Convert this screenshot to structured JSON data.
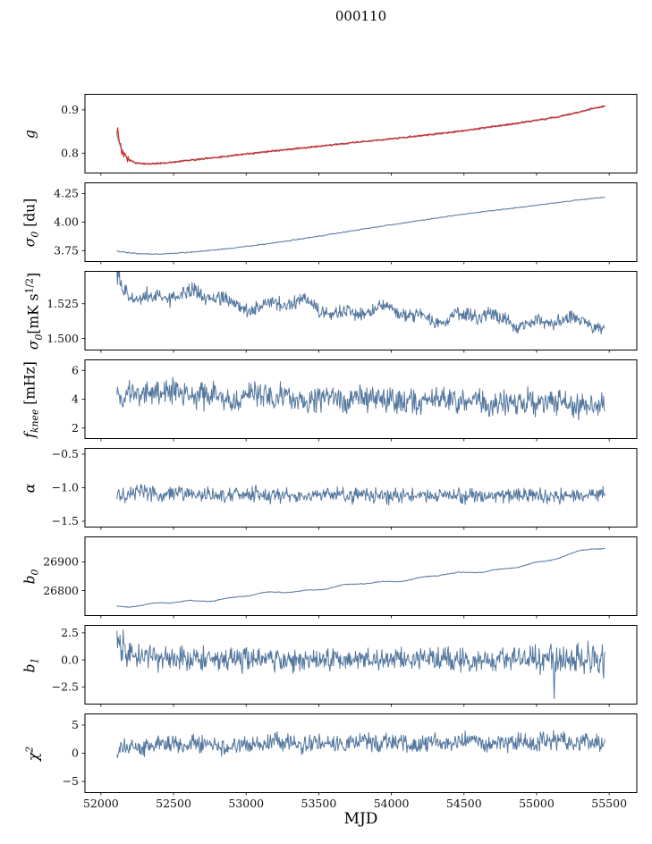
{
  "figure": {
    "title": "000110",
    "xlabel": "MJD"
  },
  "chart_data": {
    "type": "line",
    "title": "000110",
    "xlabel": "MJD",
    "grid": false,
    "legend": "none",
    "xlim": [
      51890,
      55690
    ],
    "xticks": [
      [
        52000,
        "52000"
      ],
      [
        52500,
        "52500"
      ],
      [
        53000,
        "53000"
      ],
      [
        53500,
        "53500"
      ],
      [
        54000,
        "54000"
      ],
      [
        54500,
        "54500"
      ],
      [
        55000,
        "55000"
      ],
      [
        55500,
        "55500"
      ]
    ],
    "colors": {
      "line_blue": "#53779e",
      "line_red": "#d9241f",
      "line_underlay_blue": "#7d93ab",
      "axis": "#000000"
    },
    "panels": [
      {
        "name": "g",
        "ylabel": {
          "base": "g"
        },
        "ylim": [
          0.755,
          0.935
        ],
        "yticks": [
          [
            0.8,
            "0.8"
          ],
          [
            0.9,
            "0.9"
          ]
        ],
        "series": [
          {
            "color": "#7d93ab",
            "width": 1.4,
            "n": 500,
            "noise": 0.0012,
            "trend": [
              [
                52110,
                0.843
              ],
              [
                52140,
                0.808
              ],
              [
                52180,
                0.788
              ],
              [
                52240,
                0.777
              ],
              [
                52330,
                0.7748
              ],
              [
                52450,
                0.7775
              ],
              [
                52600,
                0.7832
              ],
              [
                52800,
                0.7905
              ],
              [
                53000,
                0.798
              ],
              [
                53250,
                0.807
              ],
              [
                53500,
                0.816
              ],
              [
                53750,
                0.8245
              ],
              [
                54000,
                0.833
              ],
              [
                54250,
                0.842
              ],
              [
                54500,
                0.852
              ],
              [
                54750,
                0.8635
              ],
              [
                55000,
                0.876
              ],
              [
                55150,
                0.884
              ],
              [
                55300,
                0.8955
              ],
              [
                55400,
                0.904
              ],
              [
                55470,
                0.909
              ]
            ]
          },
          {
            "color": "#d9241f",
            "width": 1.1,
            "n": 650,
            "noise": [
              [
                52110,
                0.014
              ],
              [
                52150,
                0.009
              ],
              [
                52230,
                0.0016
              ],
              [
                55470,
                0.0016
              ]
            ],
            "trend": [
              [
                52110,
                0.843
              ],
              [
                52140,
                0.808
              ],
              [
                52180,
                0.788
              ],
              [
                52240,
                0.777
              ],
              [
                52330,
                0.7748
              ],
              [
                52450,
                0.7775
              ],
              [
                52600,
                0.7832
              ],
              [
                52800,
                0.7905
              ],
              [
                53000,
                0.798
              ],
              [
                53250,
                0.807
              ],
              [
                53500,
                0.816
              ],
              [
                53750,
                0.8245
              ],
              [
                54000,
                0.833
              ],
              [
                54250,
                0.842
              ],
              [
                54500,
                0.852
              ],
              [
                54750,
                0.8635
              ],
              [
                55000,
                0.876
              ],
              [
                55150,
                0.884
              ],
              [
                55300,
                0.8955
              ],
              [
                55400,
                0.904
              ],
              [
                55470,
                0.909
              ]
            ]
          }
        ]
      },
      {
        "name": "sigma0-du",
        "ylabel": {
          "base": "σ",
          "sub": "0",
          "rest": " [du]"
        },
        "ylim": [
          3.66,
          4.34
        ],
        "yticks": [
          [
            3.75,
            "3.75"
          ],
          [
            4.0,
            "4.00"
          ],
          [
            4.25,
            "4.25"
          ]
        ],
        "series": [
          {
            "color": "#53779e",
            "width": 1,
            "n": 600,
            "noise": [
              [
                52110,
                0.006
              ],
              [
                52250,
                0.003
              ],
              [
                55470,
                0.003
              ]
            ],
            "trend": [
              [
                52110,
                3.747
              ],
              [
                52250,
                3.725
              ],
              [
                52420,
                3.721
              ],
              [
                52650,
                3.741
              ],
              [
                52900,
                3.772
              ],
              [
                53150,
                3.812
              ],
              [
                53400,
                3.858
              ],
              [
                53650,
                3.908
              ],
              [
                53900,
                3.958
              ],
              [
                54150,
                4.006
              ],
              [
                54400,
                4.052
              ],
              [
                54650,
                4.094
              ],
              [
                54900,
                4.132
              ],
              [
                55150,
                4.172
              ],
              [
                55300,
                4.196
              ],
              [
                55470,
                4.22
              ]
            ]
          }
        ]
      },
      {
        "name": "sigma0-mK",
        "ylabel": {
          "base": "σ",
          "sub": "0",
          "mid": "[mK s",
          "sup": "1/2",
          "end": "]"
        },
        "ylim": [
          1.492,
          1.548
        ],
        "yticks": [
          [
            1.5,
            "1.500"
          ],
          [
            1.525,
            "1.525"
          ]
        ],
        "series": [
          {
            "color": "#53779e",
            "width": 1,
            "n": 800,
            "wander": 0.0032,
            "noise": [
              [
                52110,
                0.009
              ],
              [
                52200,
                0.0037
              ],
              [
                55470,
                0.0037
              ]
            ],
            "trend": [
              [
                52110,
                1.538
              ],
              [
                52200,
                1.531
              ],
              [
                52400,
                1.5335
              ],
              [
                52700,
                1.529
              ],
              [
                53000,
                1.5255
              ],
              [
                53300,
                1.5235
              ],
              [
                53600,
                1.521
              ],
              [
                53900,
                1.5185
              ],
              [
                54200,
                1.5165
              ],
              [
                54500,
                1.515
              ],
              [
                54800,
                1.5135
              ],
              [
                55100,
                1.512
              ],
              [
                55470,
                1.5095
              ]
            ]
          }
        ]
      },
      {
        "name": "f-knee",
        "ylabel": {
          "base": "f",
          "sub": "knee",
          "rest": " [mHz]"
        },
        "ylim": [
          1.3,
          6.7
        ],
        "yticks": [
          [
            2,
            "2"
          ],
          [
            4,
            "4"
          ],
          [
            6,
            "6"
          ]
        ],
        "series": [
          {
            "color": "#53779e",
            "width": 1,
            "n": 780,
            "noise": 0.66,
            "wander": 0.13,
            "trend": [
              [
                52110,
                4.45
              ],
              [
                52500,
                4.32
              ],
              [
                53000,
                4.18
              ],
              [
                53500,
                4.05
              ],
              [
                54000,
                3.92
              ],
              [
                54500,
                3.82
              ],
              [
                55000,
                3.72
              ],
              [
                55470,
                3.65
              ]
            ]
          }
        ]
      },
      {
        "name": "alpha",
        "ylabel": {
          "base": "α"
        },
        "ylim": [
          -1.58,
          -0.42
        ],
        "yticks": [
          [
            -0.5,
            "−0.5"
          ],
          [
            -1.0,
            "−1.0"
          ],
          [
            -1.5,
            "−1.5"
          ]
        ],
        "series": [
          {
            "color": "#53779e",
            "width": 1,
            "n": 780,
            "noise": 0.08,
            "wander": 0.012,
            "trend": [
              [
                52110,
                -1.085
              ],
              [
                52600,
                -1.105
              ],
              [
                53600,
                -1.115
              ],
              [
                55470,
                -1.115
              ]
            ]
          }
        ]
      },
      {
        "name": "b0",
        "ylabel": {
          "base": "b",
          "sub": "0"
        },
        "ylim": [
          26715,
          26985
        ],
        "yticks": [
          [
            26800,
            "26800"
          ],
          [
            26900,
            "26900"
          ]
        ],
        "series": [
          {
            "color": "#53779e",
            "width": 1,
            "n": 500,
            "noise": 1.2,
            "wander": 3.5,
            "trend": [
              [
                52110,
                26747
              ],
              [
                52300,
                26751
              ],
              [
                52500,
                26757
              ],
              [
                52700,
                26766
              ],
              [
                52900,
                26776
              ],
              [
                53100,
                26787
              ],
              [
                53300,
                26797
              ],
              [
                53500,
                26807
              ],
              [
                53700,
                26817
              ],
              [
                53900,
                26828
              ],
              [
                54100,
                26839
              ],
              [
                54300,
                26850
              ],
              [
                54500,
                26861
              ],
              [
                54700,
                26873
              ],
              [
                54900,
                26885
              ],
              [
                55050,
                26897
              ],
              [
                55200,
                26922
              ],
              [
                55300,
                26941
              ],
              [
                55380,
                26951
              ],
              [
                55470,
                26946
              ]
            ]
          }
        ]
      },
      {
        "name": "b1",
        "ylabel": {
          "base": "b",
          "sub": "1"
        },
        "ylim": [
          -4.05,
          3.15
        ],
        "yticks": [
          [
            -2.5,
            "−2.5"
          ],
          [
            0.0,
            "0.0"
          ],
          [
            2.5,
            "2.5"
          ]
        ],
        "series": [
          {
            "color": "#53779e",
            "width": 1,
            "n": 780,
            "noise": [
              [
                52110,
                1.4
              ],
              [
                52200,
                0.8
              ],
              [
                54800,
                0.75
              ],
              [
                55150,
                1.0
              ],
              [
                55470,
                1.1
              ]
            ],
            "spikes": [
              [
                55120,
                -3.6
              ]
            ],
            "trend": [
              [
                52110,
                1.9
              ],
              [
                52150,
                1.0
              ],
              [
                52250,
                0.25
              ],
              [
                52400,
                0.05
              ],
              [
                52600,
                0.0
              ],
              [
                55470,
                0.0
              ]
            ]
          }
        ]
      },
      {
        "name": "chi2",
        "ylabel": {
          "base": "χ",
          "sup": "2"
        },
        "ylim": [
          -6.9,
          6.9
        ],
        "yticks": [
          [
            -5,
            "−5"
          ],
          [
            0,
            "0"
          ],
          [
            5,
            "5"
          ]
        ],
        "series": [
          {
            "color": "#53779e",
            "width": 1,
            "n": 780,
            "noise": 1.15,
            "wander": 0.25,
            "trend": [
              [
                52110,
                1.1
              ],
              [
                52400,
                1.5
              ],
              [
                53000,
                1.7
              ],
              [
                54000,
                1.9
              ],
              [
                55470,
                2.0
              ]
            ]
          }
        ]
      }
    ]
  }
}
